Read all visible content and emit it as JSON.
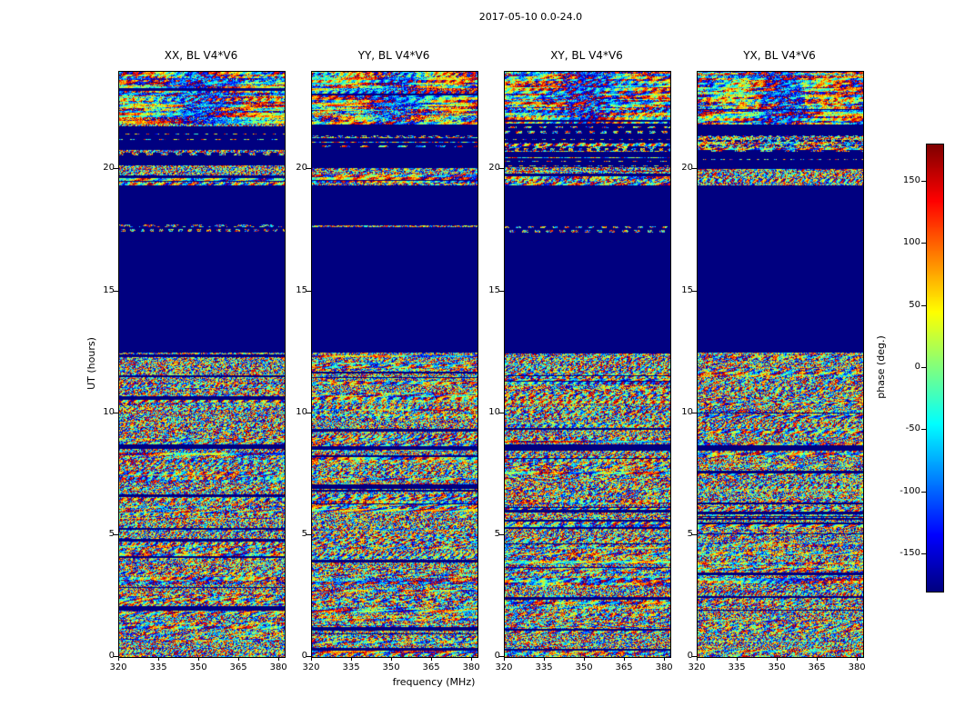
{
  "figure": {
    "title": "2017-05-10 0.0-24.0"
  },
  "chart_data": {
    "type": "heatmap",
    "title": "2017-05-10 0.0-24.0",
    "xlabel": "frequency (MHz)",
    "ylabel": "UT (hours)",
    "x_range": [
      320,
      382
    ],
    "x_ticks": [
      320,
      335,
      350,
      365,
      380
    ],
    "y_range": [
      0,
      24
    ],
    "y_ticks": [
      0,
      5,
      10,
      15,
      20
    ],
    "panels": [
      {
        "title": "XX, BL V4*V6"
      },
      {
        "title": "YY, BL V4*V6"
      },
      {
        "title": "XY, BL V4*V6"
      },
      {
        "title": "YX, BL V4*V6"
      }
    ],
    "colorbar": {
      "label": "phase (deg.)",
      "range": [
        -180,
        180
      ],
      "ticks": [
        150,
        100,
        50,
        0,
        -50,
        -100,
        -150
      ],
      "colormap": "jet",
      "quiet_color": "#000080"
    },
    "time_regions": [
      {
        "t0": 0,
        "t1": 3.05,
        "kind": "active"
      },
      {
        "t0": 3.05,
        "t1": 3.3,
        "kind": "active_blue"
      },
      {
        "t0": 3.3,
        "t1": 8.55,
        "kind": "active"
      },
      {
        "t0": 8.55,
        "t1": 8.75,
        "kind": "quiet"
      },
      {
        "t0": 8.75,
        "t1": 12.55,
        "kind": "active"
      },
      {
        "t0": 12.55,
        "t1": 17.35,
        "kind": "quiet"
      },
      {
        "t0": 17.35,
        "t1": 17.9,
        "kind": "sparse"
      },
      {
        "t0": 17.9,
        "t1": 19.35,
        "kind": "quiet"
      },
      {
        "t0": 19.35,
        "t1": 20.15,
        "kind": "active"
      },
      {
        "t0": 20.15,
        "t1": 20.7,
        "kind": "sparse"
      },
      {
        "t0": 20.7,
        "t1": 21.4,
        "kind": "mixed"
      },
      {
        "t0": 21.4,
        "t1": 21.9,
        "kind": "sparse"
      },
      {
        "t0": 21.9,
        "t1": 24,
        "kind": "active_blue"
      }
    ]
  }
}
